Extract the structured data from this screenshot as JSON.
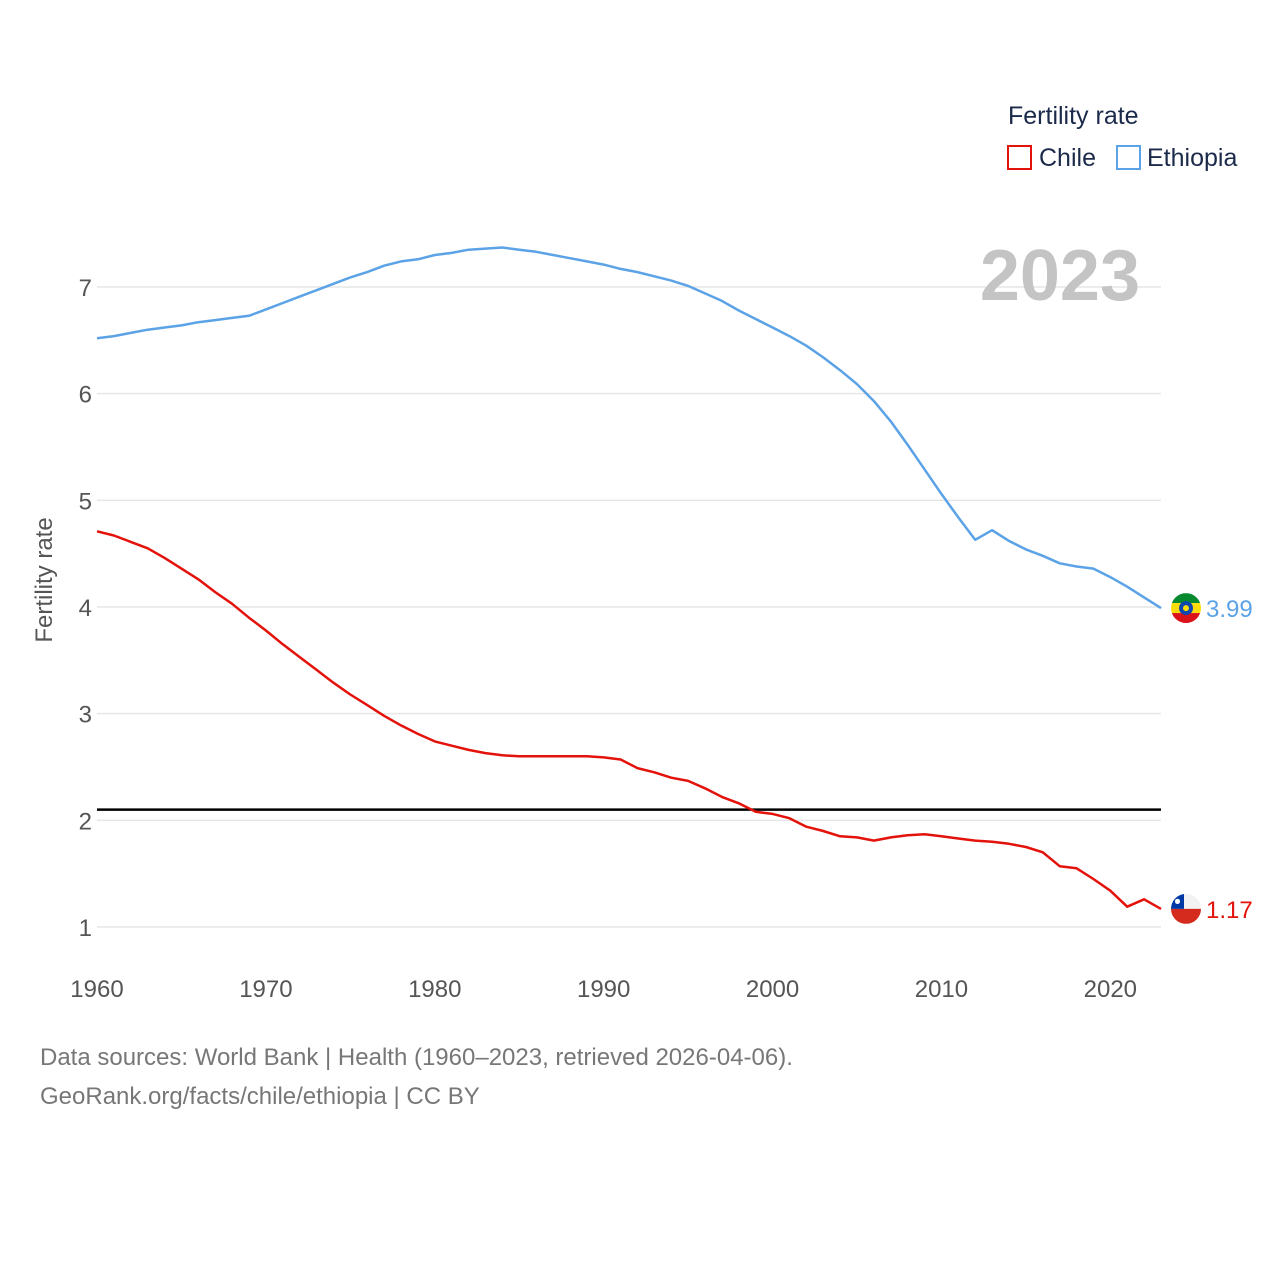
{
  "chart_data": {
    "type": "line",
    "title": "",
    "xlabel": "",
    "ylabel": "Fertility rate",
    "xlim": [
      1960,
      2023
    ],
    "ylim": [
      0.9,
      7.6
    ],
    "x_ticks": [
      1960,
      1970,
      1980,
      1990,
      2000,
      2010,
      2020
    ],
    "y_ticks": [
      1,
      2,
      3,
      4,
      5,
      6,
      7
    ],
    "legend_title": "Fertility rate",
    "legend_position": "top-right",
    "year_label": "2023",
    "reference_line": 2.1,
    "x": [
      1960,
      1961,
      1962,
      1963,
      1964,
      1965,
      1966,
      1967,
      1968,
      1969,
      1970,
      1971,
      1972,
      1973,
      1974,
      1975,
      1976,
      1977,
      1978,
      1979,
      1980,
      1981,
      1982,
      1983,
      1984,
      1985,
      1986,
      1987,
      1988,
      1989,
      1990,
      1991,
      1992,
      1993,
      1994,
      1995,
      1996,
      1997,
      1998,
      1999,
      2000,
      2001,
      2002,
      2003,
      2004,
      2005,
      2006,
      2007,
      2008,
      2009,
      2010,
      2011,
      2012,
      2013,
      2014,
      2015,
      2016,
      2017,
      2018,
      2019,
      2020,
      2021,
      2022,
      2023
    ],
    "series": [
      {
        "name": "Chile",
        "color": "#e3120b",
        "end_label": "1.17",
        "flag": "chile-flag",
        "values": [
          4.71,
          4.67,
          4.61,
          4.55,
          4.46,
          4.36,
          4.26,
          4.14,
          4.03,
          3.9,
          3.78,
          3.65,
          3.53,
          3.41,
          3.29,
          3.18,
          3.08,
          2.98,
          2.89,
          2.81,
          2.74,
          2.7,
          2.66,
          2.63,
          2.61,
          2.6,
          2.6,
          2.6,
          2.6,
          2.6,
          2.59,
          2.57,
          2.49,
          2.45,
          2.4,
          2.37,
          2.3,
          2.22,
          2.16,
          2.08,
          2.06,
          2.02,
          1.94,
          1.9,
          1.85,
          1.84,
          1.81,
          1.84,
          1.86,
          1.87,
          1.85,
          1.83,
          1.81,
          1.8,
          1.78,
          1.75,
          1.7,
          1.57,
          1.55,
          1.45,
          1.34,
          1.19,
          1.26,
          1.17
        ]
      },
      {
        "name": "Ethiopia",
        "color": "#5ba3e6",
        "end_label": "3.99",
        "flag": "ethiopia-flag",
        "values": [
          6.52,
          6.54,
          6.57,
          6.6,
          6.62,
          6.64,
          6.67,
          6.69,
          6.71,
          6.73,
          6.79,
          6.85,
          6.91,
          6.97,
          7.03,
          7.09,
          7.14,
          7.2,
          7.24,
          7.26,
          7.3,
          7.32,
          7.35,
          7.36,
          7.37,
          7.35,
          7.33,
          7.3,
          7.27,
          7.24,
          7.21,
          7.17,
          7.14,
          7.1,
          7.06,
          7.01,
          6.94,
          6.87,
          6.78,
          6.7,
          6.62,
          6.54,
          6.45,
          6.34,
          6.22,
          6.09,
          5.93,
          5.74,
          5.52,
          5.29,
          5.06,
          4.84,
          4.63,
          4.72,
          4.62,
          4.54,
          4.48,
          4.41,
          4.38,
          4.36,
          4.28,
          4.19,
          4.09,
          3.99
        ]
      }
    ]
  },
  "footer": {
    "line1": "Data sources: World Bank | Health (1960–2023, retrieved 2026-04-06).",
    "line2": "GeoRank.org/facts/chile/ethiopia | CC BY"
  }
}
